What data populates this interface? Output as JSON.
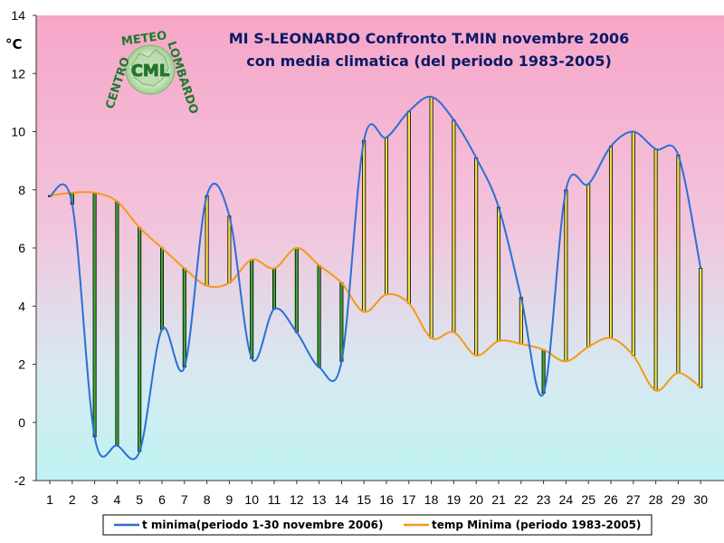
{
  "chart_data": {
    "type": "line",
    "title_lines": [
      "MI S-LEONARDO Confronto T.MIN novembre 2006",
      "con media climatica (del periodo 1983-2005)"
    ],
    "ylabel": "°C",
    "ylim": [
      -2,
      14
    ],
    "yticks": [
      -2,
      0,
      2,
      4,
      6,
      8,
      10,
      12,
      14
    ],
    "x": [
      1,
      2,
      3,
      4,
      5,
      6,
      7,
      8,
      9,
      10,
      11,
      12,
      13,
      14,
      15,
      16,
      17,
      18,
      19,
      20,
      21,
      22,
      23,
      24,
      25,
      26,
      27,
      28,
      29,
      30
    ],
    "series": [
      {
        "name": "t minima(periodo 1-30 novembre 2006)",
        "color": "#2a6fd6",
        "values": [
          7.8,
          7.5,
          -0.5,
          -0.8,
          -1.0,
          3.2,
          1.9,
          7.8,
          7.1,
          2.2,
          3.9,
          3.1,
          1.9,
          2.1,
          9.7,
          9.8,
          10.7,
          11.2,
          10.4,
          9.1,
          7.4,
          4.3,
          1.0,
          8.0,
          8.2,
          9.5,
          10.0,
          9.4,
          9.2,
          5.3
        ]
      },
      {
        "name": "temp Minima (periodo 1983-2005)",
        "color": "#f59a14",
        "values": [
          7.8,
          7.9,
          7.9,
          7.6,
          6.7,
          6.0,
          5.3,
          4.7,
          4.8,
          5.6,
          5.3,
          6.0,
          5.4,
          4.8,
          3.8,
          4.4,
          4.1,
          2.9,
          3.1,
          2.3,
          2.8,
          2.7,
          2.5,
          2.1,
          2.6,
          2.9,
          2.3,
          1.1,
          1.7,
          1.2
        ]
      }
    ],
    "difference_bars": {
      "warmer_color": "#f2e14a",
      "colder_color": "#3fa535"
    },
    "legend_placement": "bottom",
    "grid": false
  },
  "logo": {
    "center_text": "CML",
    "ring_text": "CENTRO METEO LOMBARDO",
    "ring_top": "METEO",
    "ring_left": "CENTRO",
    "ring_right": "LOMBARDO"
  }
}
